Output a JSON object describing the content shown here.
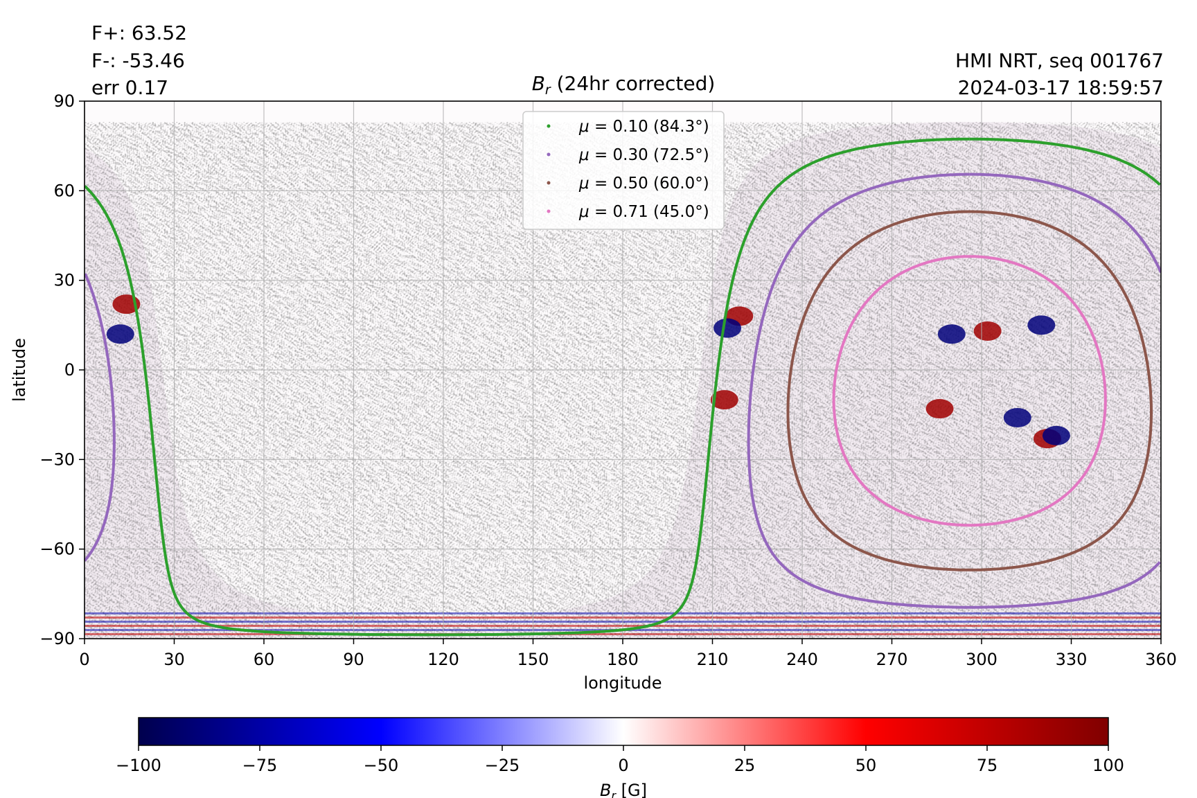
{
  "header": {
    "flux_pos": "F+: 63.52",
    "flux_neg": "F-: -53.46",
    "error": "err 0.17",
    "source": "HMI NRT, seq 001767",
    "timestamp": "2024-03-17 18:59:57"
  },
  "chart_data": {
    "type": "heatmap",
    "title_symbol": "B",
    "title_subscript": "r",
    "title_rest": " (24hr corrected)",
    "xlabel": "longitude",
    "ylabel": "latitude",
    "xlim": [
      0,
      360
    ],
    "ylim": [
      -90,
      90
    ],
    "xticks": [
      0,
      30,
      60,
      90,
      120,
      150,
      180,
      210,
      240,
      270,
      300,
      330,
      360
    ],
    "yticks": [
      -90,
      -60,
      -30,
      0,
      30,
      60,
      90
    ],
    "ytick_labels": [
      "−90",
      "−60",
      "−30",
      "0",
      "30",
      "60",
      "90"
    ],
    "grid": true,
    "legend_position": "top-center",
    "series": [
      {
        "name": "μ = 0.10 (84.3°)",
        "mu_label": "μ",
        "value_label": " = 0.10 (84.3°)",
        "color": "#2ca02c",
        "angular_radius_deg": 84.3
      },
      {
        "name": "μ = 0.30 (72.5°)",
        "mu_label": "μ",
        "value_label": " = 0.30 (72.5°)",
        "color": "#9467bd",
        "angular_radius_deg": 72.5
      },
      {
        "name": "μ = 0.50 (60.0°)",
        "mu_label": "μ",
        "value_label": " = 0.50 (60.0°)",
        "color": "#8c564b",
        "angular_radius_deg": 60.0
      },
      {
        "name": "μ = 0.71 (45.0°)",
        "mu_label": "μ",
        "value_label": " = 0.71 (45.0°)",
        "color": "#e377c2",
        "angular_radius_deg": 45.0
      }
    ],
    "disk_center": {
      "lon": 296,
      "lat": -7
    },
    "active_regions": [
      {
        "lon": 219,
        "lat": 18,
        "sign": "positive"
      },
      {
        "lon": 215,
        "lat": 14,
        "sign": "negative"
      },
      {
        "lon": 214,
        "lat": -10,
        "sign": "positive"
      },
      {
        "lon": 14,
        "lat": 22,
        "sign": "positive"
      },
      {
        "lon": 12,
        "lat": 12,
        "sign": "negative"
      },
      {
        "lon": 322,
        "lat": -23,
        "sign": "positive"
      },
      {
        "lon": 325,
        "lat": -22,
        "sign": "negative"
      },
      {
        "lon": 312,
        "lat": -16,
        "sign": "negative"
      },
      {
        "lon": 320,
        "lat": 15,
        "sign": "negative"
      },
      {
        "lon": 286,
        "lat": -13,
        "sign": "positive"
      },
      {
        "lon": 290,
        "lat": 12,
        "sign": "negative"
      },
      {
        "lon": 302,
        "lat": 13,
        "sign": "positive"
      }
    ],
    "colorbar": {
      "label_symbol": "B",
      "label_subscript": "r",
      "label_rest": " [G]",
      "range": [
        -100,
        100
      ],
      "ticks": [
        -100,
        -75,
        -50,
        -25,
        0,
        25,
        50,
        75,
        100
      ],
      "tick_labels": [
        "−100",
        "−75",
        "−50",
        "−25",
        "0",
        "25",
        "50",
        "75",
        "100"
      ],
      "colormap": "seismic",
      "colors": [
        "#00004d",
        "#0000ff",
        "#ffffff",
        "#ff0000",
        "#800000"
      ]
    }
  }
}
